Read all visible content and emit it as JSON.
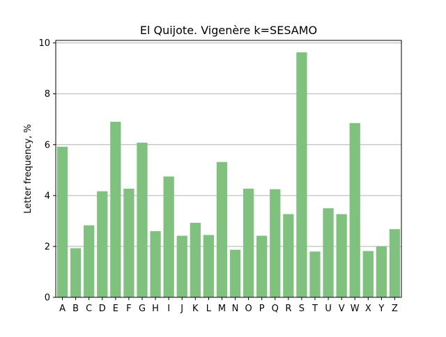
{
  "chart_data": {
    "type": "bar",
    "title": "El Quijote. Vigenère k=SESAMO",
    "xlabel": "",
    "ylabel": "Letter frequency, %",
    "categories": [
      "A",
      "B",
      "C",
      "D",
      "E",
      "F",
      "G",
      "H",
      "I",
      "J",
      "K",
      "L",
      "M",
      "N",
      "O",
      "P",
      "Q",
      "R",
      "S",
      "T",
      "U",
      "V",
      "W",
      "X",
      "Y",
      "Z"
    ],
    "values": [
      5.92,
      1.93,
      2.83,
      4.17,
      6.9,
      4.27,
      6.08,
      2.6,
      4.75,
      2.42,
      2.93,
      2.45,
      5.32,
      1.87,
      4.27,
      2.42,
      4.25,
      3.27,
      9.63,
      1.8,
      3.5,
      3.27,
      6.85,
      1.82,
      2.0,
      2.68
    ],
    "ylim": [
      0,
      10.1
    ],
    "yticks": [
      0,
      2,
      4,
      6,
      8,
      10
    ],
    "grid": "y",
    "bar_color": "#81c17f",
    "grid_color": "#b0b0b0"
  }
}
